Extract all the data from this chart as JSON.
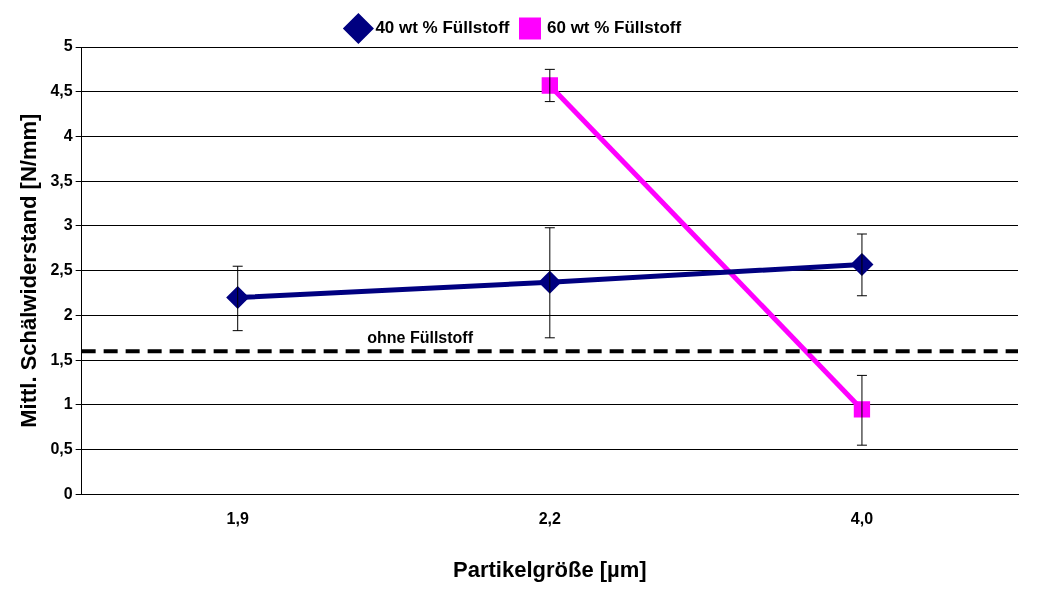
{
  "chart_data": {
    "type": "line",
    "xlabel": "Partikelgröße [µm]",
    "ylabel": "Mittl. Schälwiderstand [N/mm]",
    "categories": [
      "1,9",
      "2,2",
      "4,0"
    ],
    "series": [
      {
        "name": "40 wt % Füllstoff",
        "color": "#000080",
        "marker": "diamond",
        "values": [
          2.2,
          2.37,
          2.57
        ],
        "errors": [
          [
            1.83,
            2.55
          ],
          [
            1.75,
            2.98
          ],
          [
            2.22,
            2.91
          ]
        ]
      },
      {
        "name": "60 wt % Füllstoff",
        "color": "#ff00ff",
        "marker": "square",
        "values": [
          null,
          4.57,
          0.95
        ],
        "errors": [
          null,
          [
            4.39,
            4.75
          ],
          [
            0.55,
            1.33
          ]
        ]
      }
    ],
    "ylim": [
      0,
      5
    ],
    "yticks": [
      0,
      {
        "value": 0.5,
        "label": "0,5"
      },
      1,
      {
        "value": 1.5,
        "label": "1,5"
      },
      2,
      {
        "value": 2.5,
        "label": "2,5"
      },
      3,
      {
        "value": 3.5,
        "label": "3,5"
      },
      4,
      {
        "value": 4.5,
        "label": "4,5"
      },
      5
    ],
    "grid": "y",
    "legend": "top",
    "line_style": "solid",
    "ref_lines": [
      {
        "axis": "y",
        "value": 1.6,
        "label": "ohne Füllstoff",
        "color": "#000000",
        "line_style": "dashed"
      }
    ]
  }
}
